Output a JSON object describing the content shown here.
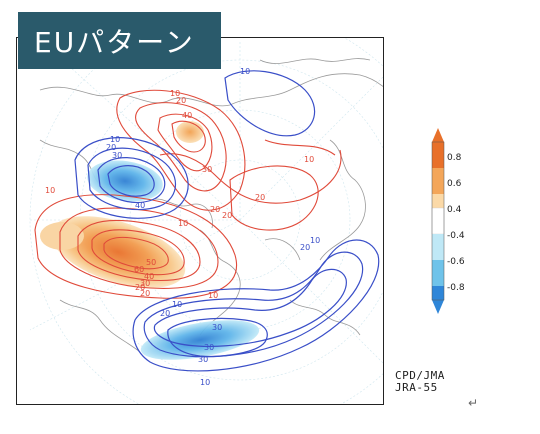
{
  "title": "EUパターン",
  "colorbar": {
    "labels": [
      "0.8",
      "0.6",
      "0.4",
      "-0.4",
      "-0.6",
      "-0.8"
    ],
    "colors": {
      "strong_pos": "#e8702a",
      "mid_pos": "#f3a65a",
      "weak_pos": "#fbd9a7",
      "neutral": "#ffffff",
      "weak_neg": "#bfe8f6",
      "mid_neg": "#6fc3ea",
      "strong_neg": "#2f86d8"
    }
  },
  "contours": {
    "blue_labels": [
      "10",
      "10",
      "20",
      "30",
      "40",
      "10",
      "20",
      "30",
      "10",
      "20",
      "30",
      "30",
      "10"
    ],
    "red_labels": [
      "10",
      "20",
      "40",
      "10",
      "30",
      "20",
      "10",
      "10",
      "20",
      "10",
      "20",
      "30",
      "40",
      "60",
      "50",
      "20",
      "20"
    ]
  },
  "credit": {
    "line1": "CPD/JMA",
    "line2": "JRA-55"
  },
  "return_mark": "↵"
}
